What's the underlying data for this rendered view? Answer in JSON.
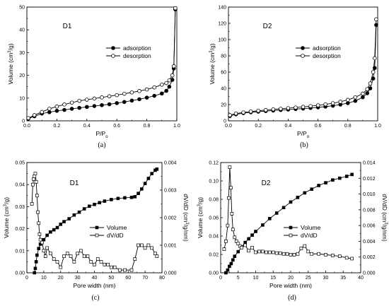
{
  "chart_data": [
    {
      "type": "line",
      "panel_label": "D1",
      "caption": "(a)",
      "xlabel": "P/P",
      "xlabel_sub": "o",
      "ylabel": "Volume (cm",
      "ylabel_sup": "3",
      "ylabel_tail": "/g)",
      "xlim": [
        0,
        1.0
      ],
      "ylim": [
        0,
        50
      ],
      "xticks": [
        "0.0",
        "0.2",
        "0.4",
        "0.6",
        "0.8",
        "1.0"
      ],
      "yticks": [
        "0",
        "10",
        "20",
        "30",
        "40",
        "50"
      ],
      "legend_position": "center-right",
      "series": [
        {
          "name": "adsorption",
          "marker": "filled-circle",
          "x": [
            0.01,
            0.05,
            0.1,
            0.15,
            0.2,
            0.25,
            0.3,
            0.35,
            0.4,
            0.45,
            0.5,
            0.55,
            0.6,
            0.65,
            0.7,
            0.75,
            0.8,
            0.85,
            0.9,
            0.93,
            0.95,
            0.97,
            0.98,
            0.99
          ],
          "values": [
            1.0,
            2.0,
            3.2,
            3.8,
            4.4,
            4.8,
            5.3,
            5.7,
            6.1,
            6.5,
            6.9,
            7.3,
            7.8,
            8.3,
            8.9,
            9.5,
            10.2,
            11.0,
            12.0,
            13.2,
            15.0,
            18.0,
            23.0,
            49.0
          ]
        },
        {
          "name": "desorption",
          "marker": "open-circle",
          "x": [
            0.01,
            0.05,
            0.1,
            0.15,
            0.2,
            0.25,
            0.3,
            0.35,
            0.4,
            0.45,
            0.5,
            0.55,
            0.6,
            0.65,
            0.7,
            0.75,
            0.8,
            0.85,
            0.9,
            0.93,
            0.95,
            0.97,
            0.98,
            0.99
          ],
          "values": [
            1.2,
            2.5,
            3.9,
            5.3,
            6.3,
            7.2,
            8.0,
            8.8,
            9.3,
            9.8,
            10.3,
            10.8,
            11.3,
            11.9,
            12.5,
            13.1,
            13.8,
            14.7,
            15.9,
            16.6,
            17.8,
            20.0,
            24.0,
            49.5
          ]
        }
      ]
    },
    {
      "type": "line",
      "panel_label": "D2",
      "caption": "(b)",
      "xlabel": "P/P",
      "xlabel_sub": "o",
      "ylabel": "Volume (cm",
      "ylabel_sup": "3",
      "ylabel_tail": "/g)",
      "xlim": [
        0,
        1.0
      ],
      "ylim": [
        0,
        140
      ],
      "xticks": [
        "0.0",
        "0.2",
        "0.4",
        "0.6",
        "0.8",
        "1.0"
      ],
      "yticks": [
        "0",
        "20",
        "40",
        "60",
        "80",
        "100",
        "120",
        "140"
      ],
      "legend_position": "top-right",
      "series": [
        {
          "name": "adsorption",
          "marker": "filled-circle",
          "x": [
            0.01,
            0.05,
            0.1,
            0.15,
            0.2,
            0.25,
            0.3,
            0.35,
            0.4,
            0.45,
            0.5,
            0.55,
            0.6,
            0.65,
            0.7,
            0.75,
            0.8,
            0.85,
            0.9,
            0.93,
            0.95,
            0.97,
            0.98,
            0.99
          ],
          "values": [
            6.0,
            8.0,
            9.5,
            10.5,
            11.3,
            12.0,
            12.7,
            13.3,
            13.9,
            14.5,
            15.1,
            15.8,
            16.6,
            17.5,
            18.6,
            20.0,
            21.8,
            24.5,
            29.0,
            34.0,
            40.0,
            52.0,
            65.0,
            118.0
          ]
        },
        {
          "name": "desorption",
          "marker": "open-circle",
          "x": [
            0.01,
            0.05,
            0.1,
            0.15,
            0.2,
            0.25,
            0.3,
            0.35,
            0.4,
            0.45,
            0.5,
            0.55,
            0.6,
            0.65,
            0.7,
            0.75,
            0.8,
            0.85,
            0.9,
            0.93,
            0.95,
            0.97,
            0.98,
            0.99
          ],
          "values": [
            7.0,
            9.0,
            10.3,
            11.5,
            12.4,
            13.3,
            14.1,
            14.9,
            15.6,
            16.4,
            17.2,
            18.1,
            19.1,
            20.3,
            21.7,
            23.5,
            25.8,
            29.0,
            33.5,
            39.0,
            46.0,
            60.0,
            77.0,
            125.0
          ]
        }
      ]
    },
    {
      "type": "line",
      "panel_label": "D1",
      "caption": "(c)",
      "xlabel": "Pore width (nm)",
      "ylabel": "Volume (cm",
      "ylabel_sup": "3",
      "ylabel_tail": "/g)",
      "y2label": "dV/dD (cm",
      "y2label_sup": "3",
      "y2label_tail": "/g/nm)",
      "xlim": [
        0,
        80
      ],
      "ylim": [
        0,
        0.05
      ],
      "y2lim": [
        0,
        0.004
      ],
      "xticks": [
        "0",
        "10",
        "20",
        "30",
        "40",
        "50",
        "60",
        "70",
        "80"
      ],
      "yticks": [
        "0.00",
        "0.01",
        "0.02",
        "0.03",
        "0.04",
        "0.05"
      ],
      "y2ticks": [
        "0.000",
        "0.001",
        "0.002",
        "0.003",
        "0.004"
      ],
      "legend_position": "center-right",
      "series": [
        {
          "name": "Volume",
          "axis": "left",
          "marker": "filled-square",
          "x": [
            4.5,
            5,
            5.5,
            6,
            7,
            8,
            10,
            12,
            14,
            16,
            18,
            20,
            22,
            25,
            28,
            31,
            34,
            37,
            40,
            43,
            46,
            50,
            54,
            58,
            62,
            64,
            66,
            68,
            70,
            72,
            74,
            76,
            77
          ],
          "values": [
            0.0,
            0.002,
            0.005,
            0.008,
            0.011,
            0.013,
            0.015,
            0.017,
            0.0185,
            0.0195,
            0.0205,
            0.022,
            0.0232,
            0.0245,
            0.0262,
            0.0275,
            0.029,
            0.0302,
            0.031,
            0.0318,
            0.0325,
            0.0332,
            0.0337,
            0.034,
            0.0342,
            0.0345,
            0.036,
            0.038,
            0.0405,
            0.0428,
            0.045,
            0.0465,
            0.047
          ]
        },
        {
          "name": "dV/dD",
          "axis": "right",
          "marker": "open-square",
          "x": [
            3,
            3.5,
            4,
            4.5,
            5,
            5.5,
            6,
            6.5,
            7,
            7.5,
            8,
            9,
            10,
            11,
            12,
            14,
            16,
            18,
            20,
            22,
            24,
            26,
            28,
            30,
            32,
            34,
            36,
            38,
            40,
            42,
            44,
            46,
            48,
            50,
            52,
            55,
            58,
            62,
            64,
            66,
            68,
            70,
            72,
            74,
            76,
            77
          ],
          "values": [
            0.0025,
            0.0032,
            0.0034,
            0.0035,
            0.0036,
            0.0033,
            0.0028,
            0.0022,
            0.0018,
            0.0014,
            0.0012,
            0.0011,
            0.0008,
            0.0006,
            0.0009,
            0.0007,
            0.0005,
            0.0004,
            0.0002,
            0.0006,
            0.0007,
            0.0006,
            0.0004,
            0.0007,
            0.0008,
            0.0006,
            0.0006,
            0.0004,
            0.0003,
            0.0005,
            0.0004,
            0.0003,
            0.0003,
            0.0002,
            0.0002,
            0.0001,
            0.0001,
            0.0001,
            0.0005,
            0.001,
            0.001,
            0.0009,
            0.001,
            0.0009,
            0.0007,
            0.0006
          ]
        }
      ]
    },
    {
      "type": "line",
      "panel_label": "D2",
      "caption": "(d)",
      "xlabel": "Pore width (nm)",
      "ylabel": "Volume (cm",
      "ylabel_sup": "3",
      "ylabel_tail": "/g)",
      "y2label": "dV/dD (cm",
      "y2label_sup": "3",
      "y2label_tail": "/g/nm)",
      "xlim": [
        0,
        40
      ],
      "ylim": [
        0,
        0.12
      ],
      "y2lim": [
        0,
        0.014
      ],
      "xticks": [
        "0",
        "5",
        "10",
        "15",
        "20",
        "25",
        "30",
        "35",
        "40"
      ],
      "yticks": [
        "0.00",
        "0.02",
        "0.04",
        "0.06",
        "0.08",
        "0.10",
        "0.12"
      ],
      "y2ticks": [
        "0.000",
        "0.002",
        "0.004",
        "0.006",
        "0.008",
        "0.010",
        "0.012",
        "0.014"
      ],
      "legend_position": "center-right",
      "series": [
        {
          "name": "Volume",
          "axis": "left",
          "marker": "filled-square",
          "x": [
            1.5,
            2,
            2.5,
            3,
            3.5,
            4,
            5,
            6,
            7,
            8,
            9,
            10,
            12,
            14,
            16,
            18,
            20,
            22,
            24,
            26,
            28,
            30,
            32,
            34,
            36,
            37.5
          ],
          "values": [
            0.0,
            0.003,
            0.007,
            0.01,
            0.014,
            0.018,
            0.023,
            0.028,
            0.033,
            0.037,
            0.041,
            0.045,
            0.052,
            0.059,
            0.065,
            0.071,
            0.077,
            0.082,
            0.087,
            0.091,
            0.095,
            0.098,
            0.101,
            0.103,
            0.105,
            0.107
          ]
        },
        {
          "name": "dV/dD",
          "axis": "right",
          "marker": "open-square",
          "x": [
            1,
            1.5,
            2,
            2.3,
            2.6,
            2.9,
            3.2,
            3.5,
            4,
            4.5,
            5,
            5.5,
            6,
            7,
            8,
            9,
            10,
            11,
            12,
            13,
            14,
            15,
            16,
            17,
            18,
            19,
            20,
            21,
            22,
            23,
            24,
            25,
            26,
            28,
            30,
            32,
            34,
            36,
            37.5
          ],
          "values": [
            0.003,
            0.004,
            0.006,
            0.0095,
            0.0134,
            0.0108,
            0.0075,
            0.0055,
            0.0045,
            0.004,
            0.0037,
            0.0034,
            0.0032,
            0.0035,
            0.0028,
            0.0032,
            0.0026,
            0.0027,
            0.0027,
            0.0026,
            0.0026,
            0.0026,
            0.0025,
            0.0025,
            0.0024,
            0.0024,
            0.0023,
            0.0023,
            0.0024,
            0.0031,
            0.0034,
            0.0027,
            0.0024,
            0.0024,
            0.0023,
            0.0022,
            0.0021,
            0.0019,
            0.0018
          ]
        }
      ]
    }
  ]
}
